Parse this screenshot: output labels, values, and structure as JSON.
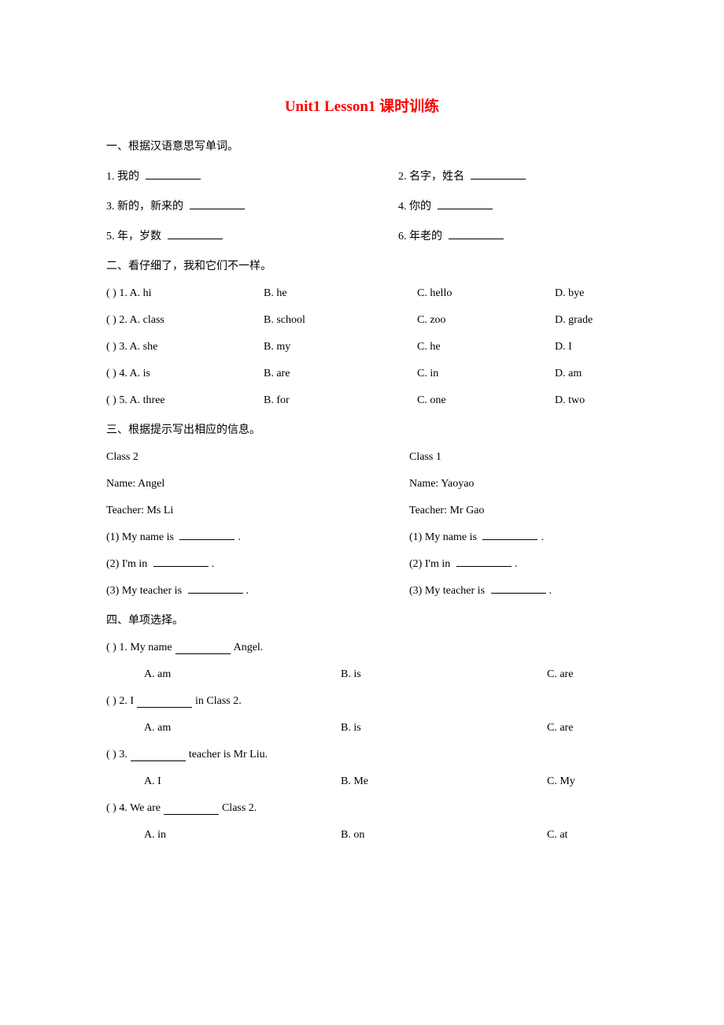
{
  "title": "Unit1 Lesson1 课时训练",
  "section1": {
    "header": "一、根据汉语意思写单词。",
    "items": [
      {
        "num": "1.",
        "text": "我的"
      },
      {
        "num": "2.",
        "text": "名字，姓名"
      },
      {
        "num": "3.",
        "text": "新的，新来的"
      },
      {
        "num": "4.",
        "text": "你的"
      },
      {
        "num": "5.",
        "text": "年，岁数"
      },
      {
        "num": "6.",
        "text": "年老的"
      }
    ]
  },
  "section2": {
    "header": "二、看仔细了，我和它们不一样。",
    "questions": [
      {
        "q": "(  ) 1. A. hi",
        "b": "B. he",
        "c": "C. hello",
        "d": "D. bye"
      },
      {
        "q": "(  ) 2. A. class",
        "b": "B. school",
        "c": "C. zoo",
        "d": "D. grade"
      },
      {
        "q": "(  ) 3. A. she",
        "b": "B. my",
        "c": "C. he",
        "d": "D. I"
      },
      {
        "q": "(  ) 4. A. is",
        "b": "B. are",
        "c": "C. in",
        "d": "D. am"
      },
      {
        "q": "(  ) 5. A. three",
        "b": "B. for",
        "c": "C. one",
        "d": "D. two"
      }
    ]
  },
  "section3": {
    "header": "三、根据提示写出相应的信息。",
    "left": {
      "class": "Class 2",
      "name": "Name: Angel",
      "teacher": "Teacher: Ms Li",
      "q1": "(1) My name is ",
      "q1suffix": ".",
      "q2": "(2) I'm in ",
      "q2suffix": ".",
      "q3": "(3) My teacher is ",
      "q3suffix": "."
    },
    "right": {
      "class": "Class 1",
      "name": "Name: Yaoyao",
      "teacher": "Teacher: Mr Gao",
      "q1": "(1) My name is ",
      "q1suffix": ".",
      "q2": "(2) I'm in ",
      "q2suffix": ".",
      "q3": "(3) My teacher is ",
      "q3suffix": "."
    }
  },
  "section4": {
    "header": "四、单项选择。",
    "questions": [
      {
        "stem": "(  ) 1. My name ",
        "stemSuffix": " Angel.",
        "a": "A. am",
        "b": "B. is",
        "c": "C. are"
      },
      {
        "stem": "(  ) 2. I ",
        "stemSuffix": " in Class 2.",
        "a": "A. am",
        "b": "B. is",
        "c": "C. are"
      },
      {
        "stem": "(  ) 3. ",
        "stemSuffix": " teacher is Mr Liu.",
        "a": "A. I",
        "b": "B. Me",
        "c": "C. My"
      },
      {
        "stem": "(  ) 4. We are ",
        "stemSuffix": " Class 2.",
        "a": "A. in",
        "b": "B. on",
        "c": "C. at"
      }
    ]
  }
}
